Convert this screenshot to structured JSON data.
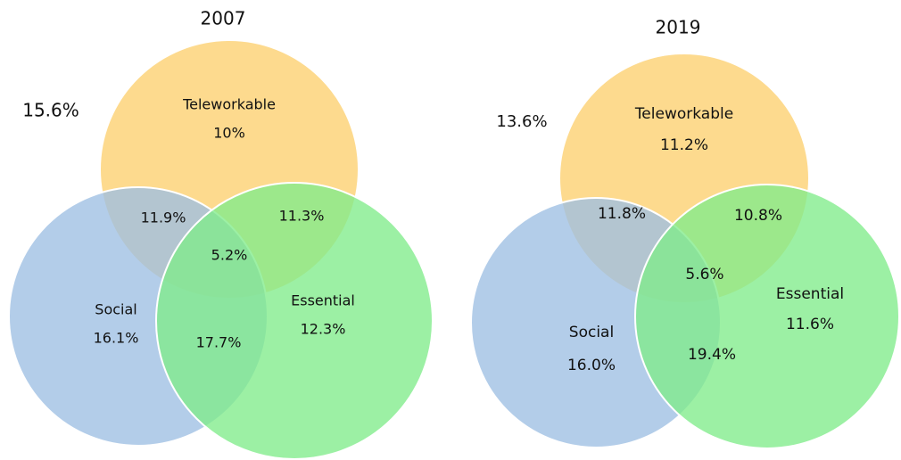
{
  "diagrams": [
    {
      "title": "2007",
      "outside": "15.6%",
      "sets": [
        {
          "label": "Teleworkable",
          "value": "10%"
        },
        {
          "label": "Social",
          "value": "16.1%"
        },
        {
          "label": "Essential",
          "value": "12.3%"
        }
      ],
      "intersections": [
        "11.9%",
        "11.3%",
        "17.7%",
        "5.2%"
      ]
    },
    {
      "title": "2019",
      "outside": "13.6%",
      "sets": [
        {
          "label": "Teleworkable",
          "value": "11.2%"
        },
        {
          "label": "Social",
          "value": "16.0%"
        },
        {
          "label": "Essential",
          "value": "11.6%"
        }
      ],
      "intersections": [
        "11.8%",
        "10.8%",
        "19.4%",
        "5.6%"
      ]
    }
  ]
}
